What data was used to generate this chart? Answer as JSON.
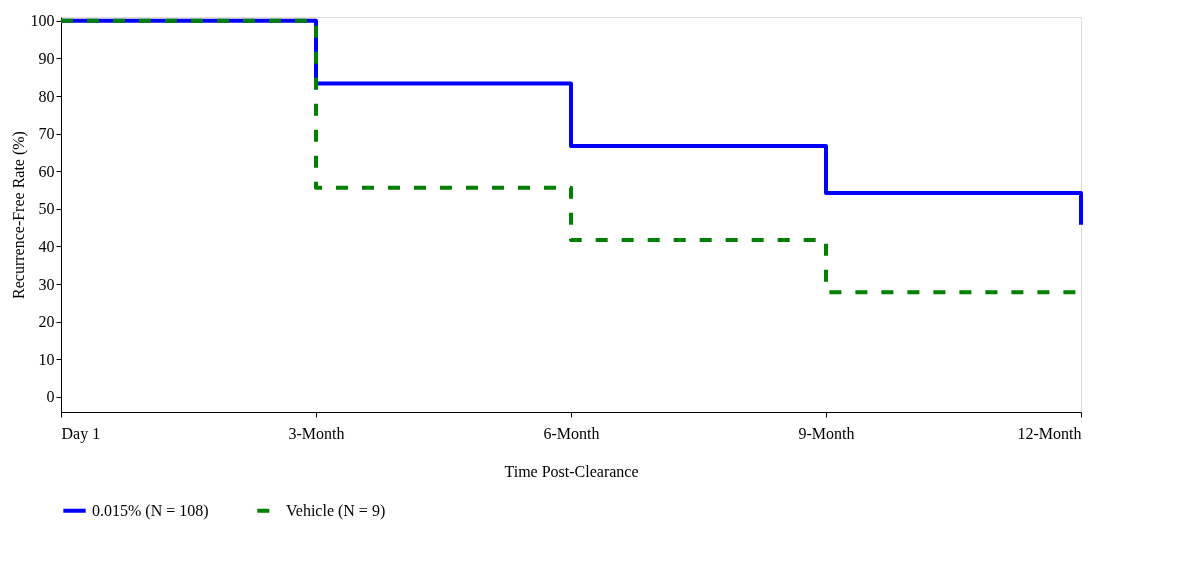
{
  "chart_data": {
    "type": "step",
    "xlabel": "Time Post-Clearance",
    "ylabel": "Recurrence-Free Rate (%)",
    "categories": [
      "Day 1",
      "3-Month",
      "6-Month",
      "9-Month",
      "12-Month"
    ],
    "series": [
      {
        "name": "0.015% (N = 108)",
        "color": "#0000ff",
        "line_style": "solid",
        "values": [
          100,
          83.3,
          66.7,
          54.2,
          45.8
        ]
      },
      {
        "name": "Vehicle (N = 9)",
        "color": "#008000",
        "line_style": "dashed",
        "values": [
          100,
          55.6,
          41.7,
          27.8,
          27.8
        ]
      }
    ],
    "ylim": [
      -4,
      101
    ],
    "yticks": [
      0,
      10,
      20,
      30,
      40,
      50,
      60,
      70,
      80,
      90,
      100
    ],
    "grid": false,
    "legend": "bottom",
    "marker": "none"
  }
}
